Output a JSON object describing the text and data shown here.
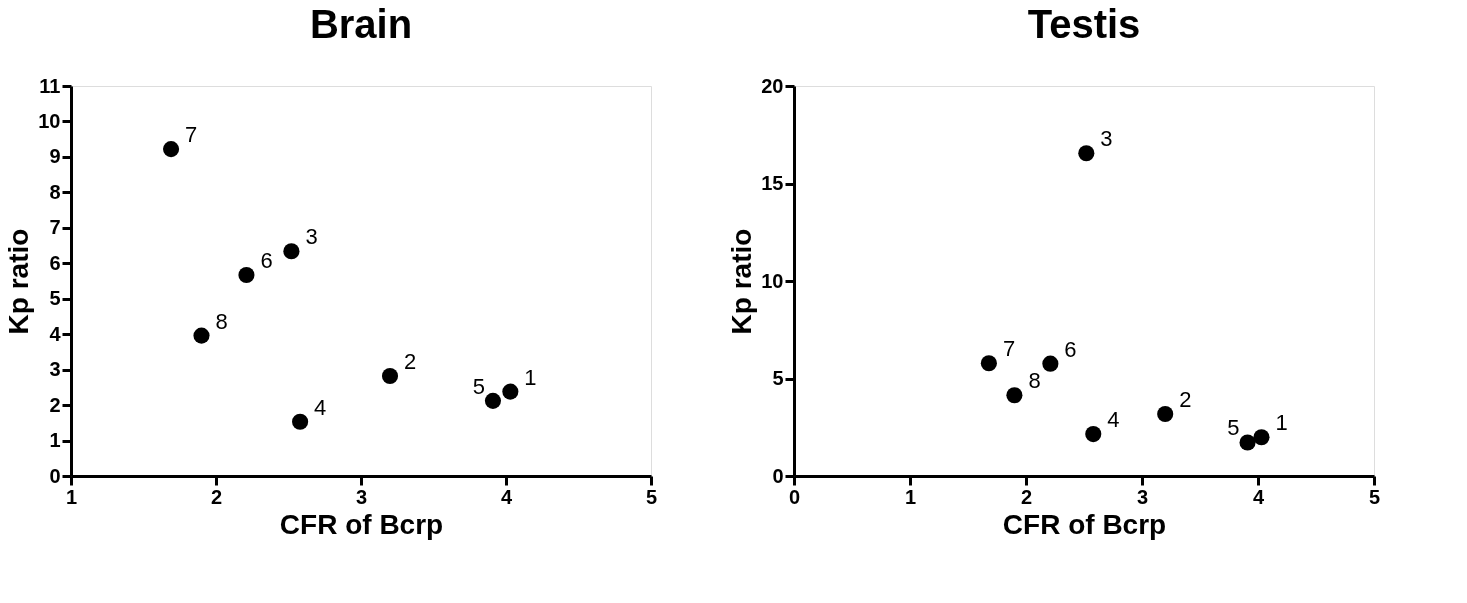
{
  "chart_data": [
    {
      "type": "scatter",
      "title": "Brain",
      "xlabel": "CFR of Bcrp",
      "ylabel": "Kp ratio",
      "marker": "circle",
      "grid": false,
      "x": [
        4.03,
        3.2,
        2.52,
        2.58,
        3.91,
        2.21,
        1.69,
        1.9
      ],
      "series": [
        {
          "color": "#000000",
          "values": [
            2.38,
            2.82,
            6.34,
            1.53,
            2.12,
            5.67,
            9.22,
            3.96
          ]
        }
      ],
      "xlim": [
        1,
        5
      ],
      "xticks": [
        1,
        2,
        3,
        4,
        5
      ],
      "ylim": [
        0,
        11
      ],
      "yticks": [
        0,
        1,
        2,
        3,
        4,
        5,
        6,
        7,
        8,
        9,
        10,
        11
      ],
      "annotations": [
        {
          "text": "1",
          "x": 4.03,
          "y": 2.38
        },
        {
          "text": "2",
          "x": 3.2,
          "y": 2.82
        },
        {
          "text": "3",
          "x": 2.52,
          "y": 6.34
        },
        {
          "text": "4",
          "x": 2.58,
          "y": 1.53
        },
        {
          "text": "5",
          "x": 3.91,
          "y": 2.12
        },
        {
          "text": "6",
          "x": 2.21,
          "y": 5.67
        },
        {
          "text": "7",
          "x": 1.69,
          "y": 9.22
        },
        {
          "text": "8",
          "x": 1.9,
          "y": 3.96
        }
      ]
    },
    {
      "type": "scatter",
      "title": "Testis",
      "xlabel": "CFR of Bcrp",
      "ylabel": "Kp ratio",
      "marker": "circle",
      "grid": false,
      "x": [
        4.03,
        3.2,
        2.52,
        2.58,
        3.91,
        2.21,
        1.68,
        1.9
      ],
      "series": [
        {
          "color": "#000000",
          "values": [
            1.99,
            3.18,
            16.55,
            2.15,
            1.72,
            5.76,
            5.78,
            4.14
          ]
        }
      ],
      "xlim": [
        0,
        5
      ],
      "xticks": [
        0,
        1,
        2,
        3,
        4,
        5
      ],
      "ylim": [
        0,
        20
      ],
      "yticks": [
        0,
        5,
        10,
        15,
        20
      ],
      "annotations": [
        {
          "text": "1",
          "x": 4.03,
          "y": 1.99
        },
        {
          "text": "2",
          "x": 3.2,
          "y": 3.18
        },
        {
          "text": "3",
          "x": 2.52,
          "y": 16.55
        },
        {
          "text": "4",
          "x": 2.58,
          "y": 2.15
        },
        {
          "text": "5",
          "x": 3.91,
          "y": 1.72
        },
        {
          "text": "6",
          "x": 2.21,
          "y": 5.76
        },
        {
          "text": "7",
          "x": 1.68,
          "y": 5.78
        },
        {
          "text": "8",
          "x": 1.9,
          "y": 4.14
        }
      ]
    }
  ]
}
